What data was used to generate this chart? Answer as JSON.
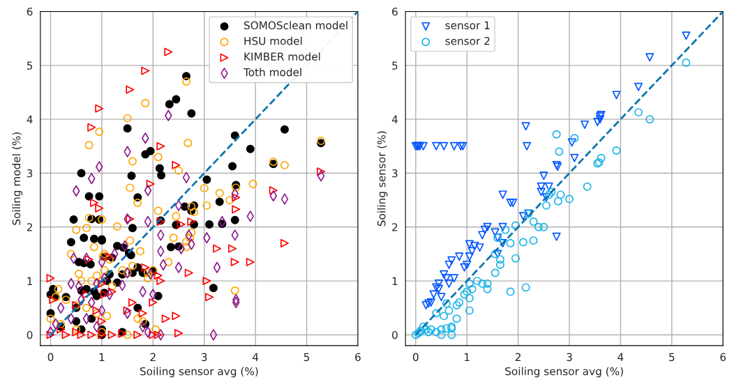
{
  "chart_data": [
    {
      "type": "scatter",
      "xlabel": "Soiling sensor avg (%)",
      "ylabel": "Soiling model (%)",
      "xlim": [
        -0.2,
        6
      ],
      "ylim": [
        -0.2,
        6
      ],
      "xticks": [
        0,
        1,
        2,
        3,
        4,
        5,
        6
      ],
      "yticks": [
        0,
        1,
        2,
        3,
        4,
        5,
        6
      ],
      "grid": true,
      "legend": "top right",
      "series": [
        {
          "name": "SOMOSclean model",
          "color": "#000000",
          "marker": "circle-filled",
          "x": [
            2.65,
            2.45,
            2.32,
            2.75,
            1.5,
            4.57,
            3.6,
            3.9,
            1.95,
            1.85,
            3.55,
            2.13,
            0.6,
            1.58,
            5.28,
            4.35,
            3.05,
            2.16,
            3.62,
            0.75,
            0.95,
            1.7,
            3.3,
            2.8,
            2.62,
            2.75,
            0.45,
            0.95,
            0.8,
            3.6,
            2.15,
            1.6,
            3.1,
            3.35,
            2.8,
            2.45,
            1.0,
            0.65,
            0.85,
            1.0,
            0.4,
            1.3,
            1.42,
            2.35,
            2.5,
            1.53,
            1.57,
            0.55,
            0.65,
            0.78,
            1.05,
            1.2,
            1.4,
            1.6,
            1.8,
            1.7,
            2.0,
            1.15,
            1.1,
            1.05,
            1.3,
            0.9,
            0.85,
            0.6,
            0.7,
            1.7,
            2.1,
            3.18,
            0.05,
            0.0,
            0.1,
            0.3,
            0.0,
            0.5,
            0.8,
            0.5,
            1.0,
            1.85,
            0.2,
            0.6,
            1.4,
            1.0
          ],
          "values": [
            4.8,
            4.37,
            4.28,
            4.11,
            3.83,
            3.81,
            3.7,
            3.45,
            3.41,
            3.35,
            3.13,
            3.09,
            3.0,
            2.95,
            3.56,
            3.17,
            2.88,
            2.96,
            2.78,
            2.57,
            2.57,
            2.55,
            2.47,
            2.4,
            2.38,
            2.3,
            2.14,
            2.14,
            2.15,
            2.13,
            2.12,
            1.98,
            2.05,
            2.06,
            2.05,
            2.04,
            1.77,
            1.8,
            1.78,
            1.75,
            1.72,
            1.65,
            1.62,
            1.63,
            1.64,
            1.52,
            1.48,
            1.35,
            1.33,
            1.31,
            1.45,
            1.43,
            1.12,
            1.15,
            1.15,
            1.25,
            1.18,
            1.12,
            1.0,
            0.78,
            0.97,
            0.72,
            0.8,
            0.82,
            0.85,
            0.5,
            0.72,
            0.87,
            0.85,
            0.75,
            0.7,
            0.7,
            0.4,
            0.5,
            0.3,
            0.25,
            0.1,
            0.2,
            0.15,
            0.1,
            0.05,
            0.0
          ]
        },
        {
          "name": "HSU model",
          "color": "#ffa500",
          "marker": "circle",
          "x": [
            2.65,
            1.85,
            1.5,
            0.95,
            0.75,
            2.68,
            5.28,
            4.35,
            4.57,
            1.6,
            2.1,
            2.5,
            3.0,
            3.62,
            3.95,
            3.3,
            3.5,
            3.05,
            2.75,
            2.8,
            1.7,
            1.55,
            2.45,
            2.1,
            0.5,
            0.7,
            0.75,
            1.0,
            1.3,
            2.4,
            1.55,
            2.65,
            2.65,
            2.3,
            2.0,
            2.75,
            2.72,
            0.4,
            0.85,
            1.02,
            1.05,
            1.15,
            1.75,
            1.6,
            1.9,
            1.9,
            1.4,
            1.5,
            1.05,
            0.9,
            0.55,
            0.6,
            0.8,
            1.0,
            1.2,
            3.6,
            0.15,
            0.1,
            0.3,
            0.5,
            0.7,
            0.9,
            1.1,
            1.7,
            1.8,
            2.05,
            0.0,
            0.2,
            0.5,
            1.0,
            1.5
          ],
          "values": [
            4.7,
            4.3,
            4.02,
            3.77,
            3.52,
            3.56,
            3.6,
            3.21,
            3.15,
            3.22,
            3.3,
            3.05,
            2.72,
            2.73,
            2.8,
            2.63,
            2.5,
            2.4,
            2.38,
            2.28,
            2.45,
            2.73,
            2.2,
            2.3,
            1.95,
            1.98,
            2.17,
            2.14,
            2.01,
            1.8,
            1.75,
            1.63,
            1.73,
            1.35,
            1.2,
            1.9,
            1.8,
            1.5,
            1.63,
            1.45,
            1.5,
            1.4,
            1.55,
            1.28,
            1.15,
            1.05,
            1.2,
            1.15,
            1.2,
            1.1,
            1.13,
            1.0,
            1.0,
            1.0,
            0.9,
            0.82,
            0.85,
            0.7,
            0.65,
            0.55,
            0.5,
            0.4,
            0.35,
            0.3,
            0.25,
            0.1,
            0.3,
            0.2,
            0.1,
            0.05,
            0.0
          ]
        },
        {
          "name": "KIMBER model",
          "color": "#ff0000",
          "marker": "triangle-right",
          "x": [
            2.3,
            1.85,
            1.55,
            0.95,
            0.8,
            2.15,
            2.45,
            1.95,
            3.62,
            4.35,
            5.28,
            0.85,
            0.95,
            3.62,
            2.75,
            1.55,
            2.15,
            2.55,
            4.57,
            3.9,
            3.6,
            3.55,
            3.25,
            1.15,
            0.75,
            1.85,
            2.1,
            2.7,
            2.15,
            3.05,
            3.1,
            2.25,
            2.45,
            1.8,
            2.0,
            1.6,
            1.05,
            1.2,
            0.0,
            0.05,
            0.5,
            0.7,
            0.9,
            1.0,
            1.5,
            1.0,
            0.2,
            0.5,
            0.0,
            0.3,
            0.6,
            0.8,
            1.0,
            1.2,
            1.4,
            1.7,
            2.0,
            2.5,
            2.1
          ],
          "values": [
            5.25,
            4.9,
            4.55,
            4.2,
            3.85,
            3.5,
            3.15,
            2.8,
            2.55,
            2.68,
            3.03,
            2.45,
            2.35,
            2.33,
            2.1,
            2.15,
            2.1,
            2.05,
            1.7,
            1.35,
            1.35,
            1.6,
            1.6,
            1.45,
            1.4,
            1.25,
            1.1,
            1.15,
            1.0,
            1.0,
            0.7,
            0.3,
            0.35,
            0.4,
            0.6,
            0.6,
            0.75,
            0.8,
            1.05,
            0.65,
            0.55,
            0.75,
            0.45,
            0.95,
            0.45,
            0.25,
            0.1,
            0.05,
            0.0,
            0.0,
            0.0,
            0.0,
            0.0,
            0.0,
            0.02,
            0.0,
            0.0,
            0.03,
            0.0
          ]
        },
        {
          "name": "Toth model",
          "color": "#8b1a8b",
          "marker": "diamond",
          "x": [
            2.3,
            1.85,
            0.95,
            0.8,
            1.5,
            2.65,
            3.6,
            4.35,
            4.57,
            5.28,
            1.9,
            3.35,
            3.9,
            2.5,
            1.5,
            1.9,
            0.5,
            2.15,
            2.15,
            2.7,
            2.75,
            3.05,
            3.6,
            0.45,
            0.7,
            1.0,
            1.45,
            1.25,
            2.5,
            2.55,
            1.5,
            1.95,
            2.2,
            3.25,
            1.05,
            1.4,
            1.8,
            2.0,
            3.62,
            3.62,
            0.4,
            0.55,
            0.9,
            1.15,
            0.6,
            0.8,
            1.0,
            1.5,
            0.2,
            0.4,
            0.7,
            0.9,
            1.8,
            1.9,
            2.15,
            3.18,
            0.1,
            0.0
          ],
          "values": [
            4.07,
            3.65,
            3.12,
            2.9,
            3.4,
            2.92,
            2.62,
            2.58,
            2.52,
            2.95,
            2.1,
            2.1,
            2.2,
            2.4,
            2.15,
            2.68,
            2.67,
            1.85,
            1.55,
            1.85,
            1.68,
            1.8,
            1.85,
            1.42,
            1.42,
            1.35,
            1.65,
            1.5,
            1.25,
            1.6,
            1.15,
            1.13,
            1.3,
            1.25,
            1.05,
            0.92,
            0.8,
            0.75,
            0.65,
            0.6,
            0.95,
            0.9,
            0.95,
            0.75,
            0.65,
            0.6,
            0.45,
            0.4,
            0.5,
            0.3,
            0.3,
            0.15,
            0.15,
            0.05,
            0.0,
            0.0,
            0.2,
            0.05
          ]
        },
        {
          "type": "line",
          "color": "#0a74b0",
          "line_style": "dashed",
          "marker": "none",
          "x": [
            0,
            6
          ],
          "values": [
            0,
            6
          ]
        }
      ]
    },
    {
      "type": "scatter",
      "xlabel": "Soiling sensor avg (%)",
      "ylabel": "Soiling sensor (%)",
      "xlim": [
        -0.2,
        6
      ],
      "ylim": [
        -0.2,
        6
      ],
      "xticks": [
        0,
        1,
        2,
        3,
        4,
        5,
        6
      ],
      "yticks": [
        0,
        1,
        2,
        3,
        4,
        5,
        6
      ],
      "grid": true,
      "legend": "top left",
      "series": [
        {
          "name": "sensor 1",
          "color": "#0055ff",
          "marker": "triangle-down",
          "x": [
            0.0,
            0.03,
            0.05,
            0.08,
            0.15,
            0.4,
            0.55,
            0.75,
            0.88,
            0.92,
            5.28,
            4.57,
            4.35,
            3.92,
            3.62,
            3.6,
            3.55,
            3.6,
            3.3,
            2.15,
            2.17,
            3.05,
            2.75,
            2.77,
            3.1,
            2.5,
            2.6,
            2.45,
            2.55,
            2.45,
            1.7,
            1.85,
            1.9,
            2.2,
            2.1,
            2.75,
            1.35,
            1.4,
            1.55,
            1.6,
            1.7,
            1.3,
            1.15,
            1.05,
            1.25,
            1.1,
            1.05,
            1.0,
            0.85,
            0.7,
            0.65,
            0.55,
            0.6,
            0.75,
            0.45,
            0.45,
            0.35,
            0.3,
            0.2,
            0.25,
            0.4,
            0.5,
            0.65,
            0.95,
            1.6,
            1.7
          ],
          "values": [
            3.5,
            3.5,
            3.5,
            3.5,
            3.5,
            3.5,
            3.5,
            3.5,
            3.5,
            3.5,
            5.55,
            5.15,
            4.6,
            4.45,
            4.08,
            4.05,
            3.95,
            4.0,
            3.9,
            3.87,
            3.5,
            3.57,
            3.15,
            3.12,
            3.28,
            2.95,
            2.75,
            2.75,
            2.55,
            2.65,
            2.6,
            2.45,
            2.45,
            2.25,
            2.2,
            1.82,
            1.95,
            2.0,
            1.9,
            1.8,
            2.0,
            1.85,
            1.65,
            1.68,
            1.62,
            1.55,
            1.45,
            1.3,
            1.45,
            1.38,
            1.3,
            1.12,
            1.05,
            1.05,
            0.95,
            0.85,
            0.75,
            0.6,
            0.55,
            0.58,
            0.88,
            0.7,
            0.95,
            1.25,
            1.5,
            1.7
          ]
        },
        {
          "name": "sensor 2",
          "color": "#1ab4e8",
          "marker": "circle",
          "x": [
            5.28,
            4.57,
            4.35,
            3.92,
            3.62,
            3.55,
            3.58,
            3.0,
            3.1,
            2.75,
            2.8,
            2.83,
            2.78,
            3.35,
            2.6,
            2.65,
            2.55,
            2.5,
            2.4,
            2.3,
            2.2,
            2.3,
            2.1,
            1.95,
            1.75,
            1.6,
            1.85,
            1.95,
            1.55,
            1.65,
            1.55,
            1.65,
            1.85,
            2.15,
            1.2,
            1.05,
            1.0,
            1.1,
            1.3,
            1.4,
            1.4,
            0.95,
            1.05,
            0.85,
            0.8,
            0.8,
            1.05,
            0.4,
            0.6,
            0.65,
            0.55,
            0.7,
            0.3,
            0.4,
            0.5,
            0.6,
            0.7,
            0.5,
            0.7,
            0.25,
            0.0,
            0.05,
            0.1,
            0.15,
            0.2,
            0.08
          ],
          "values": [
            5.05,
            4.0,
            4.13,
            3.42,
            3.28,
            3.18,
            3.2,
            2.52,
            3.65,
            3.72,
            3.4,
            2.6,
            2.48,
            2.75,
            2.6,
            2.65,
            2.4,
            2.0,
            2.0,
            2.1,
            2.25,
            1.75,
            1.72,
            2.03,
            1.95,
            1.8,
            1.7,
            1.42,
            1.5,
            1.4,
            1.15,
            1.3,
            0.8,
            0.88,
            1.0,
            0.95,
            0.8,
            0.85,
            0.95,
            0.95,
            0.85,
            0.75,
            0.68,
            0.6,
            0.55,
            0.3,
            0.45,
            0.4,
            0.58,
            0.45,
            0.35,
            0.15,
            0.1,
            0.05,
            0.1,
            0.12,
            0.12,
            0.0,
            0.0,
            0.05,
            0.0,
            0.03,
            0.08,
            0.15,
            0.1,
            0.05
          ]
        },
        {
          "type": "line",
          "color": "#0a74b0",
          "line_style": "dashed",
          "marker": "none",
          "x": [
            0,
            6
          ],
          "values": [
            0,
            6
          ]
        }
      ]
    }
  ]
}
